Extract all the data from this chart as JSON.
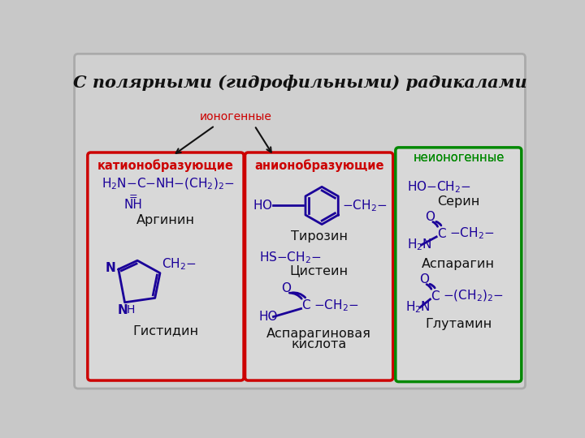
{
  "title": "С полярными (гидрофильными) радикалами",
  "bg_color": "#c8c8c8",
  "panel_bg": "#d4d4d4",
  "blue": "#1a0099",
  "red": "#cc0000",
  "green": "#008800",
  "black": "#111111",
  "ionogenic_label": "ионогенные",
  "nonionogenic_label": "неионогенные",
  "cation_label": "катионобразующие",
  "anion_label": "анионобразующие",
  "arginine": "Аргинин",
  "histidine": "Гистидин",
  "tyrosine": "Тирозин",
  "cysteine": "Цистеин",
  "aspartic1": "Аспарагиновая",
  "aspartic2": "кислота",
  "serine": "Серин",
  "asparagine": "Аспарагин",
  "glutamine": "Глутамин"
}
